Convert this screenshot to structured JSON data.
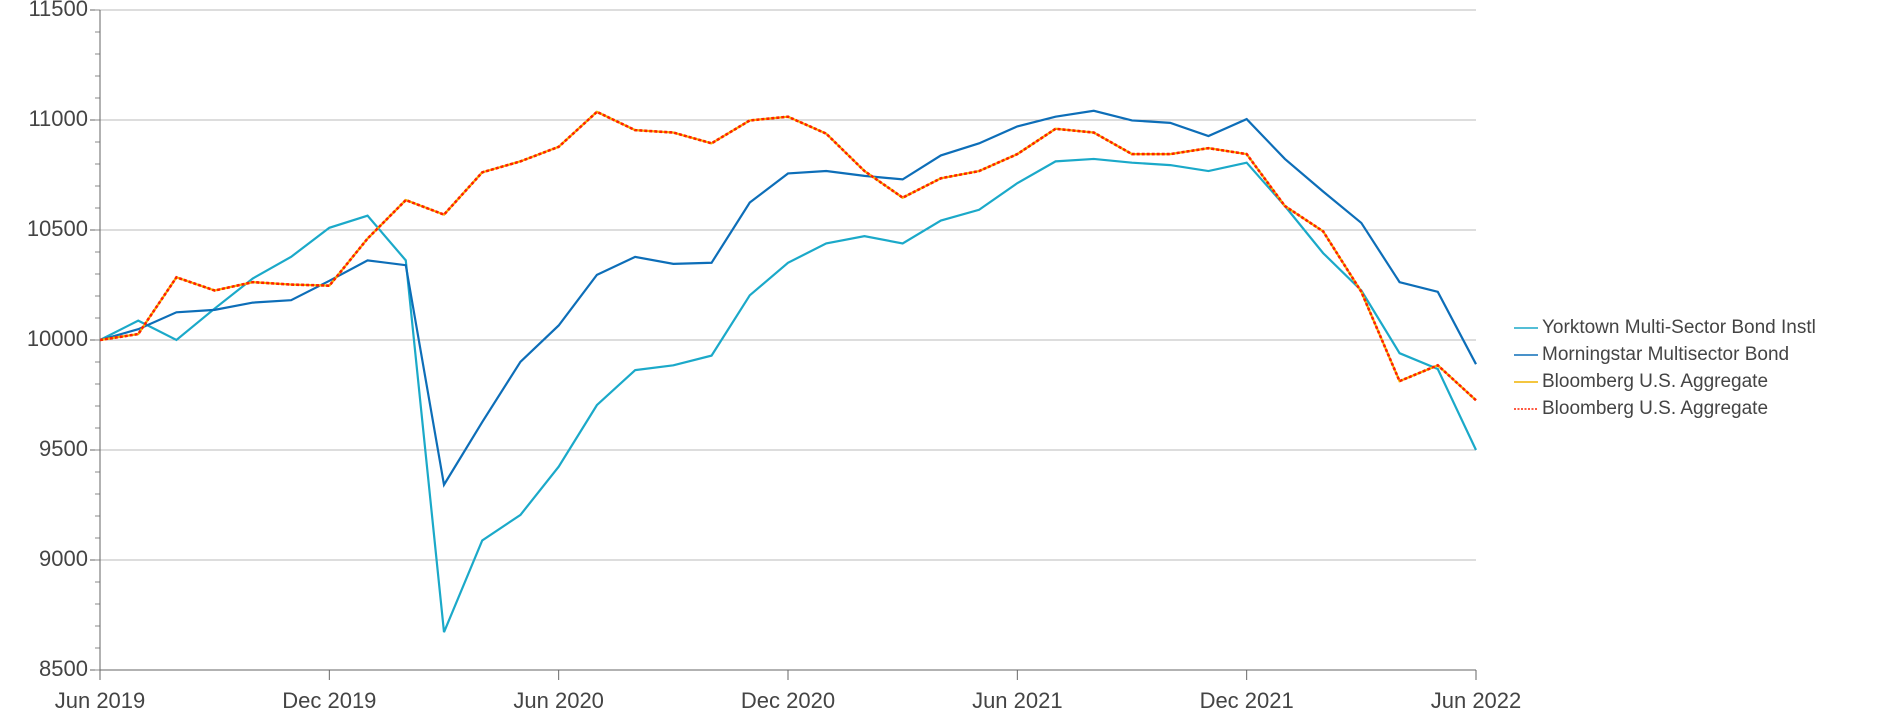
{
  "chart_data": {
    "type": "line",
    "categories": [
      "Jun 2019",
      null,
      null,
      null,
      null,
      null,
      "Dec 2019",
      null,
      null,
      null,
      null,
      null,
      "Jun 2020",
      null,
      null,
      null,
      null,
      null,
      "Dec 2020",
      null,
      null,
      null,
      null,
      null,
      "Jun 2021",
      null,
      null,
      null,
      null,
      null,
      "Dec 2021",
      null,
      null,
      null,
      null,
      null,
      "Jun 2022"
    ],
    "series": [
      {
        "name": "Yorktown Multi-Sector Bond Instl",
        "color": "#1ba9c9",
        "dash": false,
        "values": [
          10000,
          10088,
          10000,
          10143,
          10280,
          10378,
          10510,
          10565,
          10362,
          8672,
          9089,
          9205,
          9424,
          9704,
          9863,
          9885,
          9929,
          10203,
          10351,
          10439,
          10472,
          10439,
          10543,
          10592,
          10713,
          10812,
          10823,
          10806,
          10795,
          10768,
          10806,
          10609,
          10395,
          10225,
          9940,
          9868,
          9500
        ]
      },
      {
        "name": "Morningstar Multisector Bond",
        "color": "#0d6eb8",
        "dash": false,
        "values": [
          10000,
          10049,
          10126,
          10137,
          10170,
          10181,
          10269,
          10362,
          10340,
          9342,
          9627,
          9901,
          10066,
          10296,
          10378,
          10346,
          10351,
          10625,
          10757,
          10768,
          10746,
          10730,
          10839,
          10894,
          10971,
          11015,
          11042,
          10998,
          10987,
          10927,
          11004,
          10823,
          10675,
          10532,
          10263,
          10219,
          9890
        ]
      },
      {
        "name": "Bloomberg U.S. Aggregate",
        "color": "#f0b400",
        "dash": false,
        "values": [
          10000,
          10027,
          10285,
          10225,
          10263,
          10252,
          10247,
          10461,
          10636,
          10570,
          10762,
          10812,
          10878,
          11037,
          10954,
          10943,
          10894,
          10998,
          11015,
          10938,
          10768,
          10647,
          10735,
          10768,
          10845,
          10960,
          10943,
          10845,
          10845,
          10872,
          10845,
          10609,
          10494,
          10219,
          9813,
          9885,
          9726
        ]
      },
      {
        "name": "Bloomberg U.S. Aggregate",
        "color": "#ff2200",
        "dash": true,
        "values": [
          10000,
          10027,
          10285,
          10225,
          10263,
          10252,
          10247,
          10461,
          10636,
          10570,
          10762,
          10812,
          10878,
          11037,
          10954,
          10943,
          10894,
          10998,
          11015,
          10938,
          10768,
          10647,
          10735,
          10768,
          10845,
          10960,
          10943,
          10845,
          10845,
          10872,
          10845,
          10609,
          10494,
          10219,
          9813,
          9885,
          9726
        ]
      }
    ],
    "ylim": [
      8500,
      11500
    ],
    "yticks": [
      8500,
      9000,
      9500,
      10000,
      10500,
      11000,
      11500
    ],
    "grid": true
  }
}
